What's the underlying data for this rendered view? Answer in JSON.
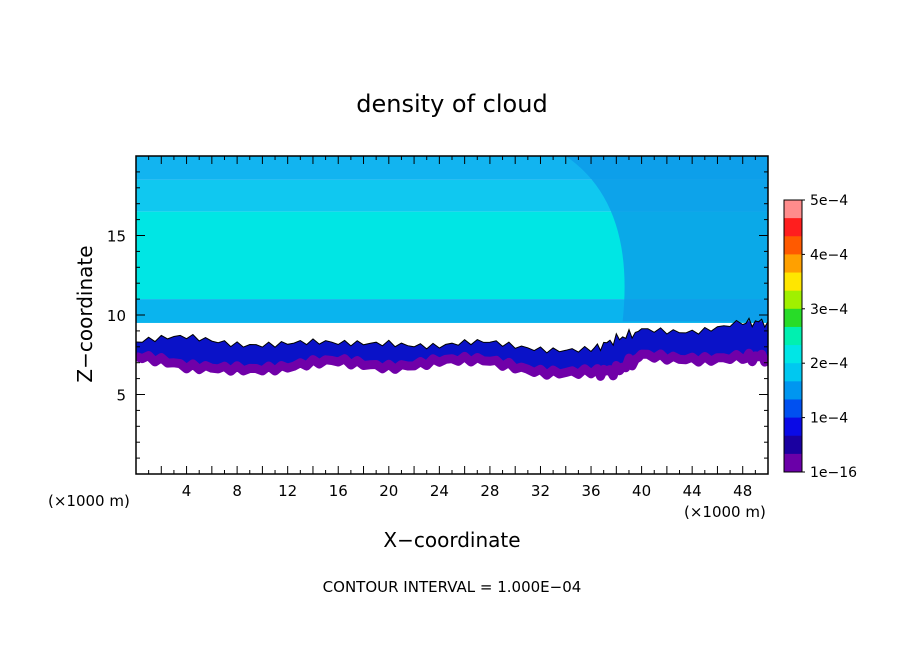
{
  "chart_data": {
    "type": "heatmap",
    "title": "density of cloud",
    "xlabel": "X−coordinate",
    "ylabel": "Z−coordinate",
    "x_unit_left": "(×1000 m)",
    "x_unit_right": "(×1000 m)",
    "xlim": [
      0,
      50
    ],
    "ylim": [
      0,
      20
    ],
    "x_ticks": [
      4,
      8,
      12,
      16,
      20,
      24,
      28,
      32,
      36,
      40,
      44,
      48
    ],
    "x_tick_labels": [
      "4",
      "8",
      "12",
      "16",
      "20",
      "24",
      "28",
      "32",
      "36",
      "40",
      "44",
      "48"
    ],
    "y_ticks": [
      5,
      10,
      15
    ],
    "y_tick_labels": [
      "5",
      "10",
      "15"
    ],
    "colorbar": {
      "labels": [
        "5e−4",
        "4e−4",
        "3e−4",
        "2e−4",
        "1e−4",
        "1e−16"
      ],
      "colors": [
        "#ff8c8c",
        "#ff1e1e",
        "#ff5a00",
        "#ffa000",
        "#ffe600",
        "#a0f000",
        "#28dc28",
        "#00f0b0",
        "#00e6e6",
        "#00c8f0",
        "#0096f0",
        "#0050f0",
        "#0a0ae6",
        "#1a00a0",
        "#6a00a8"
      ]
    },
    "cloud_base_km": [
      [
        0,
        7.4
      ],
      [
        4,
        6.6
      ],
      [
        8,
        6.8
      ],
      [
        12,
        6.7
      ],
      [
        16,
        7.0
      ],
      [
        20,
        6.9
      ],
      [
        24,
        7.1
      ],
      [
        28,
        7.0
      ],
      [
        32,
        6.6
      ],
      [
        36,
        6.4
      ],
      [
        38,
        6.5
      ],
      [
        40,
        7.4
      ],
      [
        44,
        7.4
      ],
      [
        48,
        7.3
      ],
      [
        50,
        7.4
      ]
    ],
    "contour_1e-4_km": [
      [
        0,
        8.3
      ],
      [
        4,
        8.5
      ],
      [
        8,
        8.3
      ],
      [
        12,
        8.2
      ],
      [
        16,
        8.1
      ],
      [
        20,
        8.4
      ],
      [
        24,
        8.0
      ],
      [
        28,
        8.2
      ],
      [
        32,
        8.0
      ],
      [
        36,
        7.8
      ],
      [
        38,
        8.5
      ],
      [
        40,
        9.0
      ],
      [
        44,
        9.1
      ],
      [
        48,
        9.5
      ],
      [
        50,
        9.6
      ]
    ],
    "bands": [
      {
        "z": [
          18.5,
          20
        ],
        "value": "9e−5",
        "color": "#12b4f0"
      },
      {
        "z": [
          16.5,
          18.5
        ],
        "value": "1.2e−4",
        "color": "#10c8f0"
      },
      {
        "z": [
          11.0,
          16.5
        ],
        "value": "1.4e−4",
        "color": "#00e6e4"
      },
      {
        "z": [
          9.5,
          11.0
        ],
        "value": "1.1e−4",
        "color": "#0ab4ee"
      }
    ],
    "contour_interval_note": "CONTOUR INTERVAL = 1.000E−04"
  }
}
